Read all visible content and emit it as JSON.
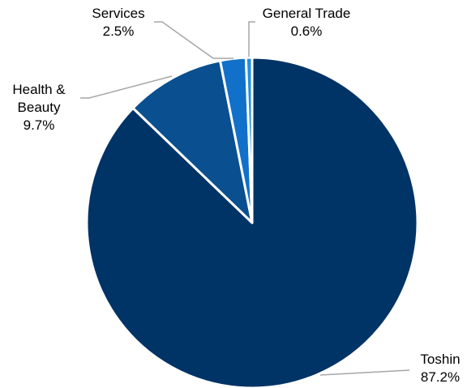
{
  "chart_data": {
    "type": "pie",
    "start_angle_deg": 0,
    "direction": "clockwise",
    "slices": [
      {
        "label": "Toshin",
        "value": 87.2,
        "value_text": "87.2%",
        "color": "#003366"
      },
      {
        "label": "Health &\nBeauty",
        "value": 9.7,
        "value_text": "9.7%",
        "color": "#0A4F8F"
      },
      {
        "label": "Services",
        "value": 2.5,
        "value_text": "2.5%",
        "color": "#1170C9"
      },
      {
        "label": "General Trade",
        "value": 0.6,
        "value_text": "0.6%",
        "color": "#1F8FE0"
      }
    ],
    "slice_border_color": "#ffffff",
    "leader_line_color": "#a6a6a6"
  }
}
